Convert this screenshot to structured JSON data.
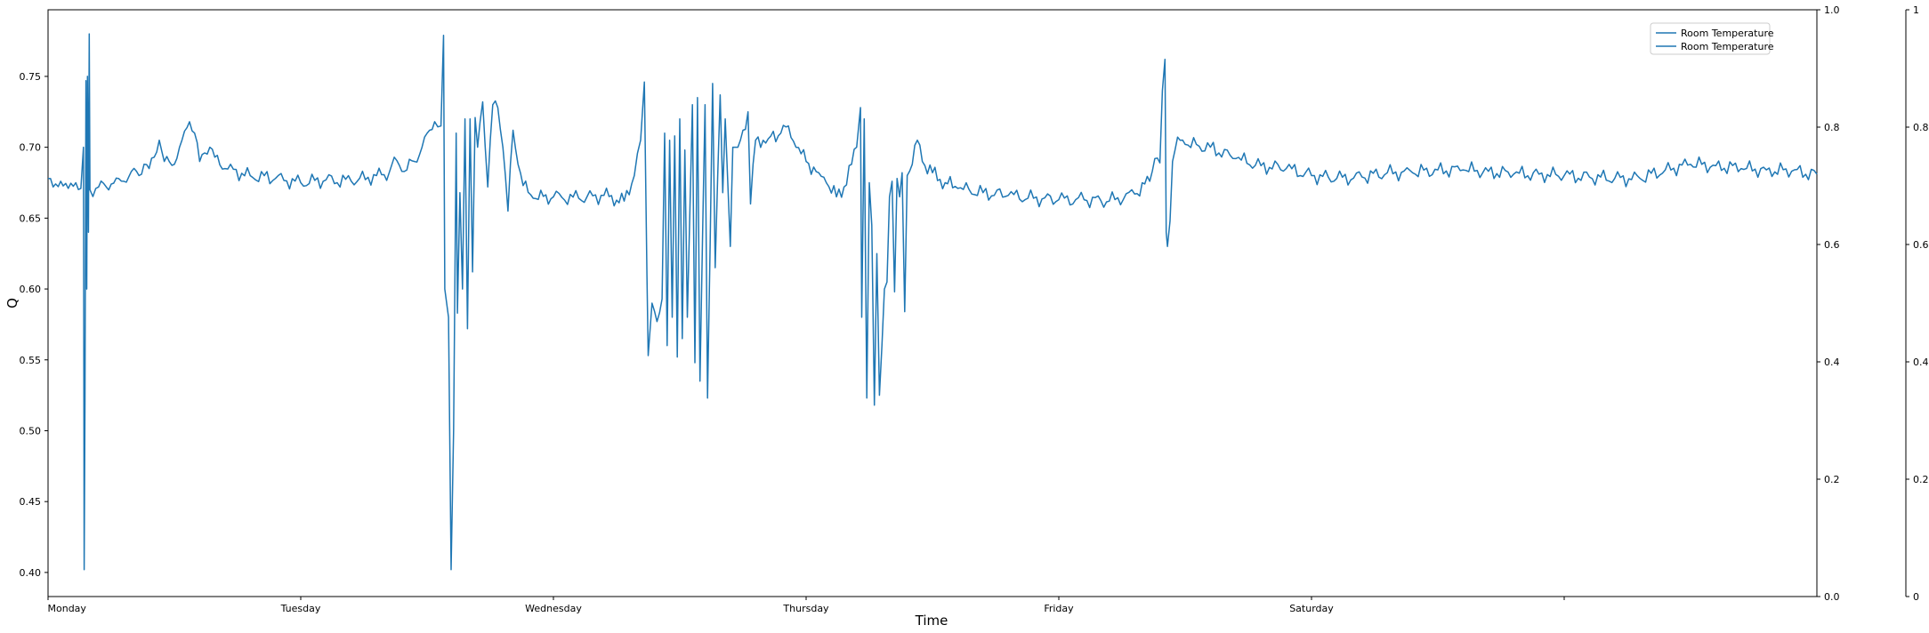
{
  "chart_data": {
    "type": "line",
    "title": "",
    "xlabel": "Time",
    "ylabel": "Q",
    "x_ticks": [
      "Monday",
      "Tuesday",
      "Wednesday",
      "Thursday",
      "Friday",
      "Saturday",
      ""
    ],
    "x_range": [
      0,
      7
    ],
    "ylim": [
      0.383,
      0.797
    ],
    "y_ticks": [
      0.4,
      0.45,
      0.5,
      0.55,
      0.6,
      0.65,
      0.7,
      0.75
    ],
    "y_tick_labels": [
      "0.40",
      "0.45",
      "0.50",
      "0.55",
      "0.60",
      "0.65",
      "0.70",
      "0.75"
    ],
    "right_axis_1": {
      "ticks": [
        "0.0",
        "0.2",
        "0.4",
        "0.6",
        "0.8",
        "1.0"
      ],
      "ylim": [
        0,
        1
      ]
    },
    "right_axis_2": {
      "ticks": [
        "0",
        "0.2",
        "0.4",
        "0.6",
        "0.8",
        "1"
      ],
      "ylim": [
        0,
        1
      ]
    },
    "legend": {
      "position": "top-right",
      "entries": [
        "Room Temperature",
        "Room Temperature"
      ]
    },
    "series": [
      {
        "name": "Room Temperature",
        "color": "#1f77b4",
        "points": [
          [
            0.0,
            0.678
          ],
          [
            0.02,
            0.672
          ],
          [
            0.05,
            0.676
          ],
          [
            0.08,
            0.671
          ],
          [
            0.11,
            0.675
          ],
          [
            0.13,
            0.671
          ],
          [
            0.14,
            0.7
          ],
          [
            0.143,
            0.402
          ],
          [
            0.146,
            0.52
          ],
          [
            0.15,
            0.747
          ],
          [
            0.153,
            0.6
          ],
          [
            0.156,
            0.75
          ],
          [
            0.16,
            0.64
          ],
          [
            0.163,
            0.78
          ],
          [
            0.166,
            0.67
          ],
          [
            0.2,
            0.672
          ],
          [
            0.25,
            0.674
          ],
          [
            0.3,
            0.676
          ],
          [
            0.33,
            0.683
          ],
          [
            0.36,
            0.68
          ],
          [
            0.38,
            0.688
          ],
          [
            0.4,
            0.685
          ],
          [
            0.42,
            0.693
          ],
          [
            0.44,
            0.705
          ],
          [
            0.46,
            0.69
          ],
          [
            0.5,
            0.688
          ],
          [
            0.53,
            0.705
          ],
          [
            0.56,
            0.718
          ],
          [
            0.58,
            0.71
          ],
          [
            0.6,
            0.69
          ],
          [
            0.62,
            0.696
          ],
          [
            0.64,
            0.7
          ],
          [
            0.66,
            0.693
          ],
          [
            0.7,
            0.685
          ],
          [
            0.8,
            0.68
          ],
          [
            0.9,
            0.678
          ],
          [
            1.0,
            0.675
          ],
          [
            1.1,
            0.677
          ],
          [
            1.2,
            0.676
          ],
          [
            1.3,
            0.68
          ],
          [
            1.35,
            0.682
          ],
          [
            1.37,
            0.693
          ],
          [
            1.4,
            0.683
          ],
          [
            1.45,
            0.69
          ],
          [
            1.48,
            0.7
          ],
          [
            1.51,
            0.712
          ],
          [
            1.53,
            0.718
          ],
          [
            1.555,
            0.715
          ],
          [
            1.565,
            0.779
          ],
          [
            1.57,
            0.6
          ],
          [
            1.585,
            0.58
          ],
          [
            1.595,
            0.402
          ],
          [
            1.605,
            0.5
          ],
          [
            1.615,
            0.71
          ],
          [
            1.62,
            0.583
          ],
          [
            1.63,
            0.668
          ],
          [
            1.64,
            0.6
          ],
          [
            1.65,
            0.72
          ],
          [
            1.66,
            0.572
          ],
          [
            1.67,
            0.72
          ],
          [
            1.68,
            0.612
          ],
          [
            1.69,
            0.721
          ],
          [
            1.7,
            0.7
          ],
          [
            1.72,
            0.732
          ],
          [
            1.74,
            0.672
          ],
          [
            1.76,
            0.73
          ],
          [
            1.78,
            0.728
          ],
          [
            1.8,
            0.7
          ],
          [
            1.82,
            0.655
          ],
          [
            1.84,
            0.712
          ],
          [
            1.86,
            0.688
          ],
          [
            1.88,
            0.673
          ],
          [
            1.92,
            0.664
          ],
          [
            2.0,
            0.665
          ],
          [
            2.1,
            0.664
          ],
          [
            2.2,
            0.666
          ],
          [
            2.28,
            0.662
          ],
          [
            2.32,
            0.68
          ],
          [
            2.345,
            0.705
          ],
          [
            2.36,
            0.746
          ],
          [
            2.37,
            0.61
          ],
          [
            2.375,
            0.553
          ],
          [
            2.39,
            0.59
          ],
          [
            2.41,
            0.577
          ],
          [
            2.43,
            0.593
          ],
          [
            2.44,
            0.71
          ],
          [
            2.45,
            0.56
          ],
          [
            2.46,
            0.705
          ],
          [
            2.47,
            0.58
          ],
          [
            2.48,
            0.708
          ],
          [
            2.49,
            0.552
          ],
          [
            2.5,
            0.72
          ],
          [
            2.51,
            0.565
          ],
          [
            2.52,
            0.698
          ],
          [
            2.53,
            0.58
          ],
          [
            2.55,
            0.73
          ],
          [
            2.56,
            0.548
          ],
          [
            2.57,
            0.735
          ],
          [
            2.58,
            0.535
          ],
          [
            2.6,
            0.73
          ],
          [
            2.61,
            0.523
          ],
          [
            2.63,
            0.745
          ],
          [
            2.64,
            0.615
          ],
          [
            2.66,
            0.737
          ],
          [
            2.67,
            0.668
          ],
          [
            2.68,
            0.72
          ],
          [
            2.7,
            0.63
          ],
          [
            2.71,
            0.7
          ],
          [
            2.73,
            0.7
          ],
          [
            2.75,
            0.712
          ],
          [
            2.77,
            0.725
          ],
          [
            2.78,
            0.66
          ],
          [
            2.8,
            0.705
          ],
          [
            2.85,
            0.706
          ],
          [
            2.9,
            0.71
          ],
          [
            2.93,
            0.715
          ],
          [
            2.96,
            0.7
          ],
          [
            3.0,
            0.69
          ],
          [
            3.05,
            0.682
          ],
          [
            3.08,
            0.675
          ],
          [
            3.12,
            0.665
          ],
          [
            3.15,
            0.672
          ],
          [
            3.18,
            0.688
          ],
          [
            3.2,
            0.7
          ],
          [
            3.215,
            0.728
          ],
          [
            3.22,
            0.58
          ],
          [
            3.23,
            0.72
          ],
          [
            3.24,
            0.523
          ],
          [
            3.25,
            0.675
          ],
          [
            3.26,
            0.645
          ],
          [
            3.27,
            0.518
          ],
          [
            3.28,
            0.625
          ],
          [
            3.29,
            0.525
          ],
          [
            3.3,
            0.56
          ],
          [
            3.31,
            0.6
          ],
          [
            3.32,
            0.605
          ],
          [
            3.33,
            0.665
          ],
          [
            3.34,
            0.676
          ],
          [
            3.35,
            0.598
          ],
          [
            3.36,
            0.678
          ],
          [
            3.37,
            0.665
          ],
          [
            3.38,
            0.682
          ],
          [
            3.39,
            0.584
          ],
          [
            3.4,
            0.68
          ],
          [
            3.42,
            0.688
          ],
          [
            3.44,
            0.705
          ],
          [
            3.46,
            0.69
          ],
          [
            3.5,
            0.682
          ],
          [
            3.55,
            0.675
          ],
          [
            3.6,
            0.671
          ],
          [
            3.7,
            0.668
          ],
          [
            3.8,
            0.666
          ],
          [
            3.9,
            0.664
          ],
          [
            4.0,
            0.663
          ],
          [
            4.1,
            0.663
          ],
          [
            4.2,
            0.662
          ],
          [
            4.3,
            0.667
          ],
          [
            4.36,
            0.676
          ],
          [
            4.38,
            0.692
          ],
          [
            4.4,
            0.689
          ],
          [
            4.41,
            0.74
          ],
          [
            4.42,
            0.762
          ],
          [
            4.425,
            0.64
          ],
          [
            4.43,
            0.63
          ],
          [
            4.44,
            0.648
          ],
          [
            4.45,
            0.69
          ],
          [
            4.46,
            0.698
          ],
          [
            4.48,
            0.705
          ],
          [
            4.5,
            0.702
          ],
          [
            4.6,
            0.7
          ],
          [
            4.7,
            0.692
          ],
          [
            4.8,
            0.687
          ],
          [
            4.9,
            0.685
          ],
          [
            5.0,
            0.68
          ],
          [
            5.1,
            0.678
          ],
          [
            5.2,
            0.679
          ],
          [
            5.3,
            0.682
          ],
          [
            5.4,
            0.682
          ],
          [
            5.5,
            0.684
          ],
          [
            5.6,
            0.684
          ],
          [
            5.7,
            0.683
          ],
          [
            5.8,
            0.681
          ],
          [
            5.9,
            0.681
          ],
          [
            6.0,
            0.68
          ],
          [
            6.1,
            0.679
          ],
          [
            6.2,
            0.678
          ],
          [
            6.3,
            0.678
          ],
          [
            6.4,
            0.684
          ],
          [
            6.5,
            0.688
          ],
          [
            6.6,
            0.687
          ],
          [
            6.7,
            0.685
          ],
          [
            6.8,
            0.684
          ],
          [
            6.9,
            0.683
          ],
          [
            7.0,
            0.681
          ]
        ]
      }
    ]
  }
}
